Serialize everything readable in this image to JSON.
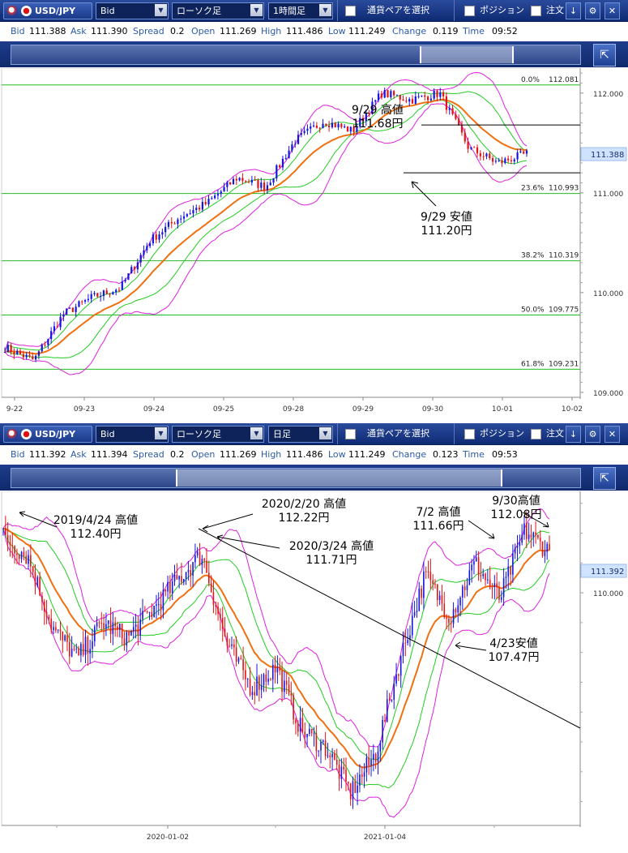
{
  "panel1": {
    "toolbar": {
      "pair": "USD/JPY",
      "price_type": "Bid",
      "chart_type": "ローソク足",
      "timeframe": "1時間足",
      "pair_select": "通貨ペアを選択",
      "position": "ポジション",
      "order": "注文"
    },
    "quotes": {
      "bid_label": "Bid",
      "bid": "111.388",
      "ask_label": "Ask",
      "ask": "111.390",
      "spread_label": "Spread",
      "spread": "0.2",
      "open_label": "Open",
      "open": "111.269",
      "high_label": "High",
      "high": "111.486",
      "low_label": "Low",
      "low": "111.249",
      "change_label": "Change",
      "change": "0.119",
      "time_label": "Time",
      "time": "09:52"
    },
    "navigator_window": [
      0.72,
      0.88
    ]
  },
  "panel2": {
    "toolbar": {
      "pair": "USD/JPY",
      "price_type": "Bid",
      "chart_type": "ローソク足",
      "timeframe": "日足",
      "pair_select": "通貨ペアを選択",
      "position": "ポジション",
      "order": "注文"
    },
    "quotes": {
      "bid_label": "Bid",
      "bid": "111.392",
      "ask_label": "Ask",
      "ask": "111.394",
      "spread_label": "Spread",
      "spread": "0.2",
      "open_label": "Open",
      "open": "111.269",
      "high_label": "High",
      "high": "111.486",
      "low_label": "Low",
      "low": "111.249",
      "change_label": "Change",
      "change": "0.123",
      "time_label": "Time",
      "time": "09:53"
    },
    "navigator_window": [
      0.29,
      0.86
    ]
  },
  "colors": {
    "bull": "#1515e0",
    "bear": "#e01515",
    "ema": "#f07010",
    "band_inner": "#22cc22",
    "band_outer": "#dd22dd",
    "fib": "#22bb22",
    "price_tag": "#cfe2ff"
  },
  "chart_data": [
    {
      "type": "candlestick",
      "timeframe": "1時間足",
      "x_ticks": [
        "9-22",
        "09-23",
        "09-24",
        "09-25",
        "09-28",
        "09-29",
        "09-30",
        "10-01",
        "10-02"
      ],
      "y_ticks": [
        "112.000",
        "111.000",
        "110.000",
        "109.000"
      ],
      "ylim": [
        108.95,
        112.25
      ],
      "current_price": "111.388",
      "close_path": [
        109.45,
        109.32,
        109.78,
        109.95,
        110.05,
        110.52,
        110.75,
        110.9,
        111.15,
        111.06,
        111.52,
        111.72,
        111.62,
        112.0,
        111.93,
        112.0,
        111.45,
        111.3,
        111.39
      ],
      "fibonacci": [
        {
          "label": "0.0%",
          "value": "112.081"
        },
        {
          "label": "23.6%",
          "value": "110.993"
        },
        {
          "label": "38.2%",
          "value": "110.319"
        },
        {
          "label": "50.0%",
          "value": "109.775"
        },
        {
          "label": "61.8%",
          "value": "109.231"
        }
      ],
      "hlines": [
        111.68,
        111.2
      ],
      "annotations": [
        {
          "line1": "9/29 高値",
          "line2": "111.68円"
        },
        {
          "line1": "9/29 安値",
          "line2": "111.20円"
        }
      ]
    },
    {
      "type": "candlestick",
      "timeframe": "日足",
      "x_ticks": [
        "2020-01-02",
        "2021-01-04"
      ],
      "y_ticks": [
        "110.000"
      ],
      "current_price": "111.392",
      "close_path": [
        111.9,
        111.2,
        108.8,
        107.8,
        109.0,
        108.5,
        109.4,
        110.4,
        111.3,
        108.3,
        106.8,
        107.5,
        105.4,
        104.8,
        103.3,
        104.6,
        107.8,
        110.6,
        109.2,
        111.0,
        109.8,
        112.08,
        111.39
      ],
      "annotations": [
        {
          "line1": "2019/4/24 高値",
          "line2": "112.40円"
        },
        {
          "line1": "2020/2/20 高値",
          "line2": "112.22円"
        },
        {
          "line1": "2020/3/24 高値",
          "line2": "111.71円"
        },
        {
          "line1": "7/2 高値",
          "line2": "111.66円"
        },
        {
          "line1": "9/30高値",
          "line2": "112.08円"
        },
        {
          "line1": "4/23安値",
          "line2": "107.47円"
        }
      ]
    }
  ]
}
